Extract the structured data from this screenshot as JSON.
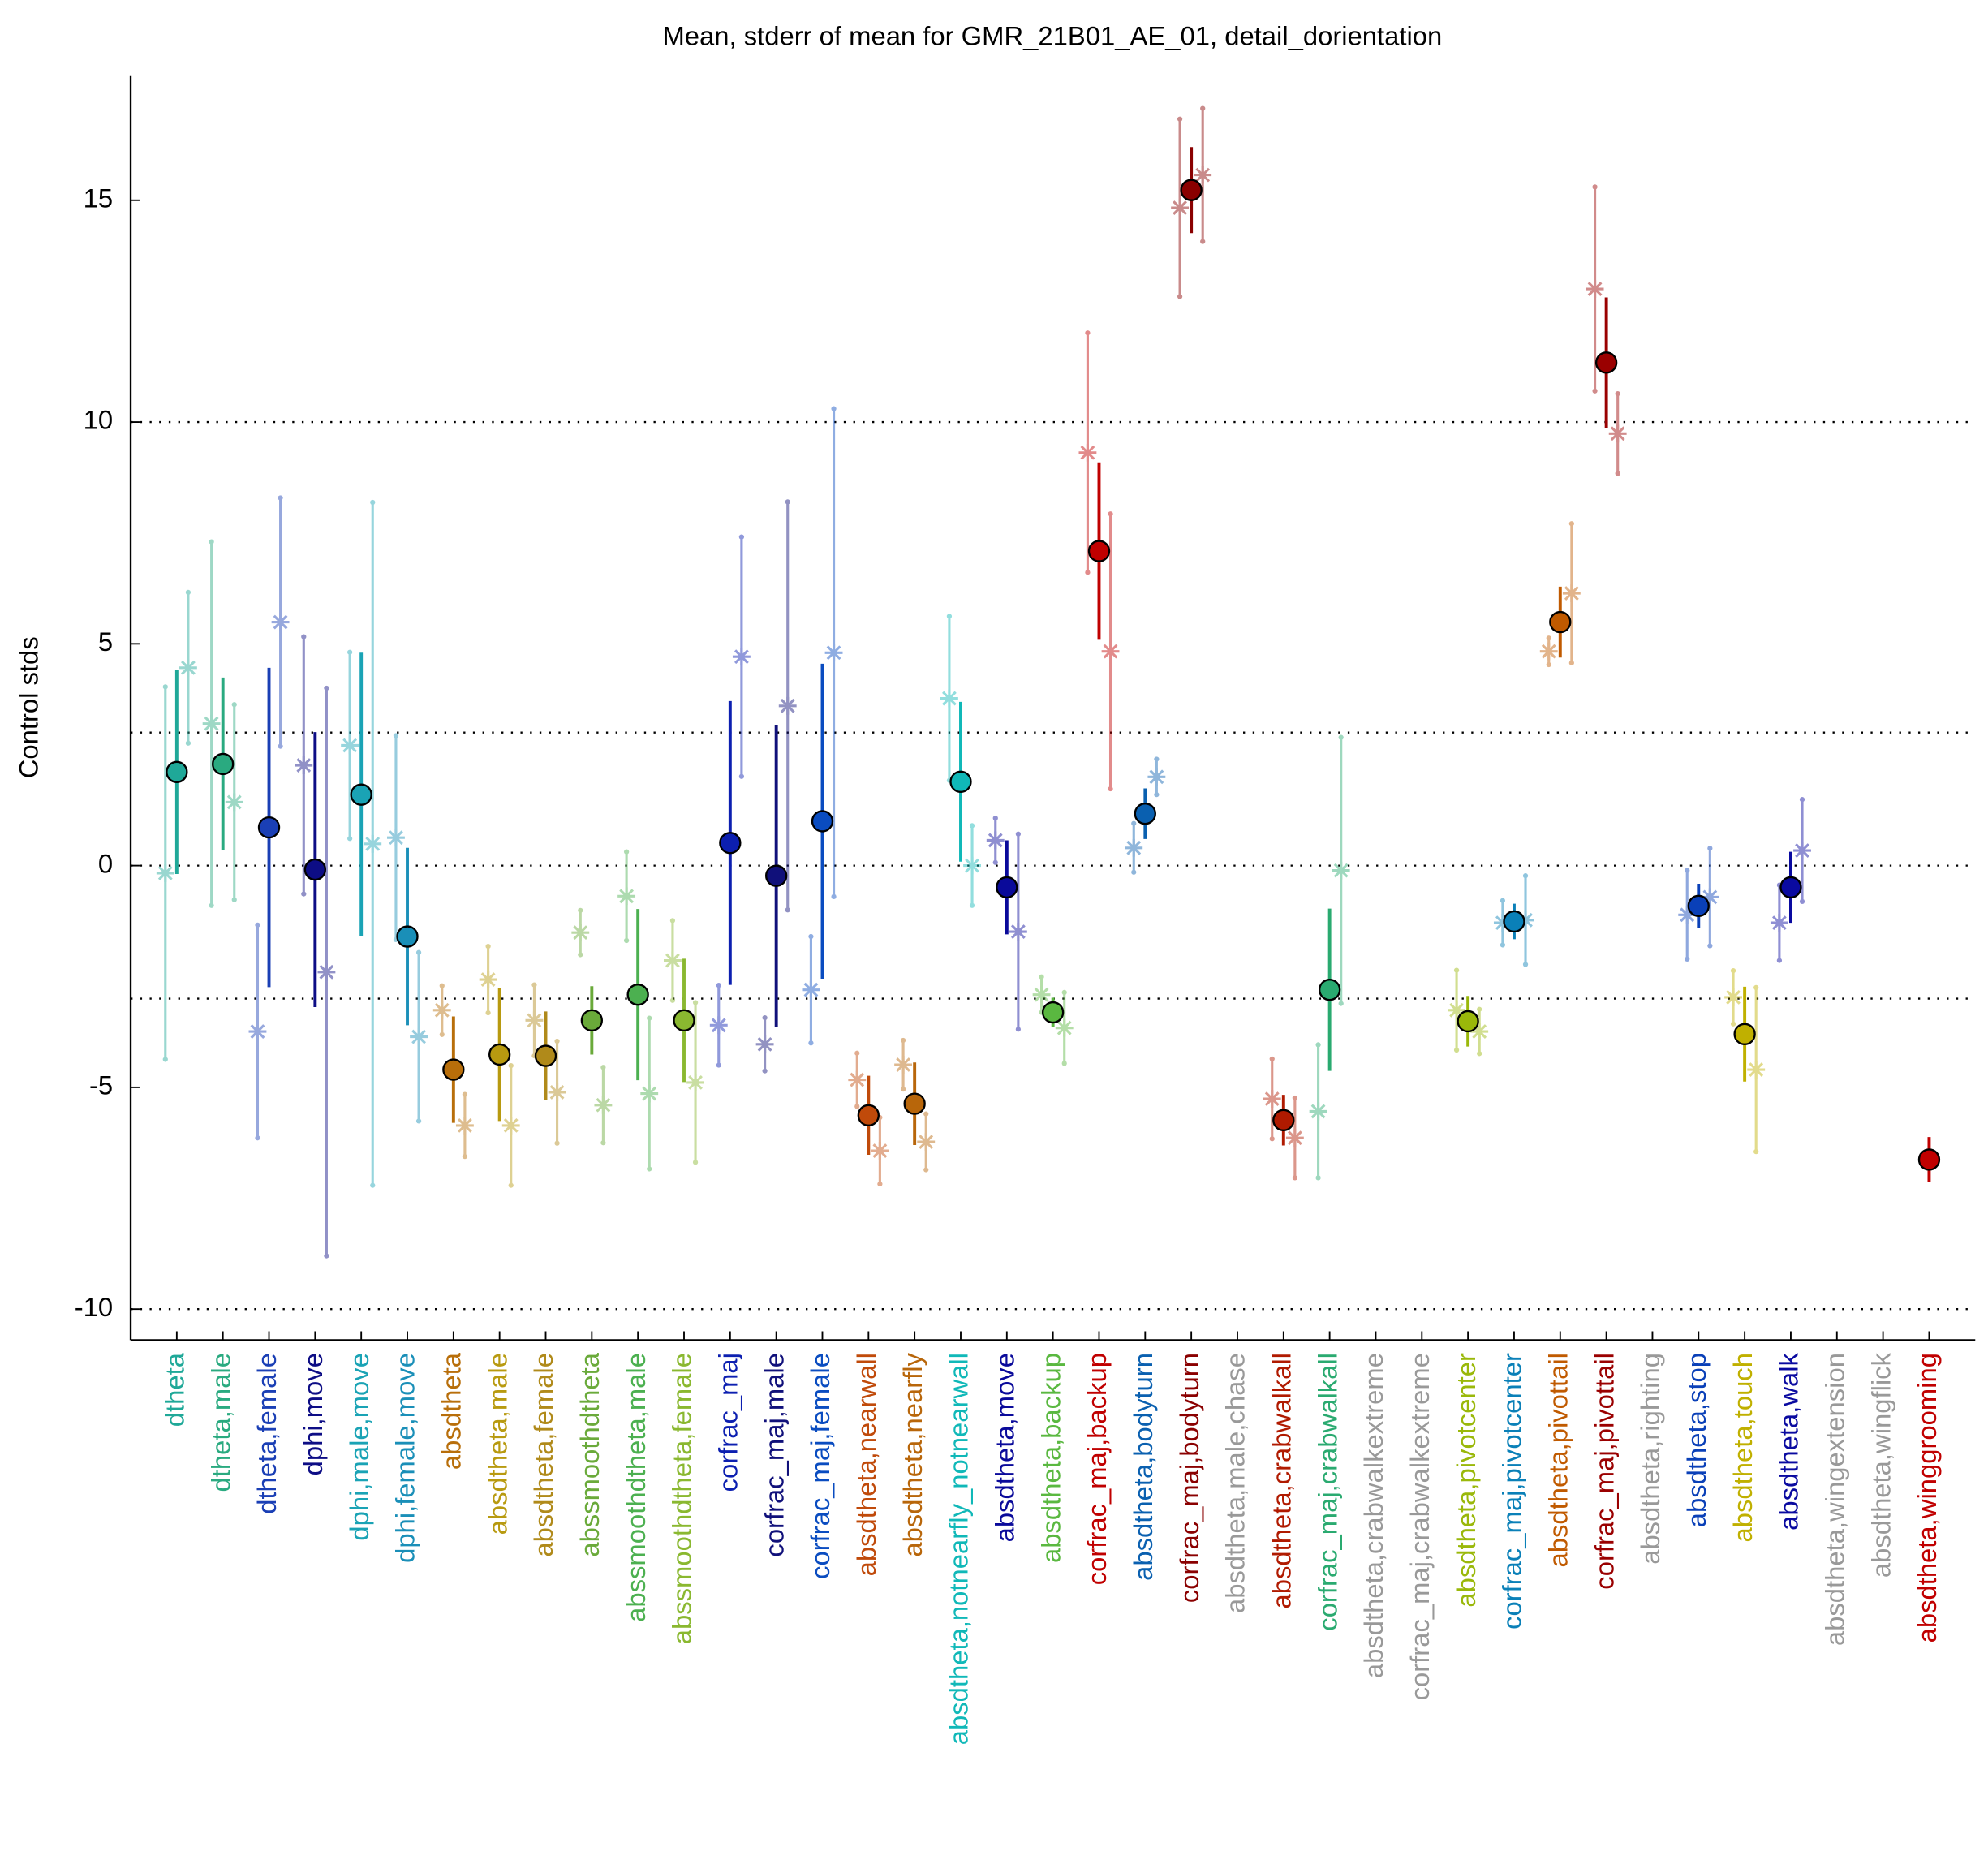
{
  "chart_data": {
    "type": "errorbar",
    "title": "Mean, stderr of mean for GMR_21B01_AE_01, detail_dorientation",
    "ylabel": "Control stds",
    "categories": [
      "dtheta",
      "dtheta,male",
      "dtheta,female",
      "dphi,move",
      "dphi,male,move",
      "dphi,female,move",
      "absdtheta",
      "absdtheta,male",
      "absdtheta,female",
      "abssmoothdtheta",
      "abssmoothdtheta,male",
      "abssmoothdtheta,female",
      "corfrac_maj",
      "corfrac_maj,male",
      "corfrac_maj,female",
      "absdtheta,nearwall",
      "absdtheta,nearfly",
      "absdtheta,notnearfly_notnearwall",
      "absdtheta,move",
      "absdtheta,backup",
      "corfrac_maj,backup",
      "absdtheta,bodyturn",
      "corfrac_maj,bodyturn",
      "absdtheta,male,chase",
      "absdtheta,crabwalkall",
      "corfrac_maj,crabwalkall",
      "absdtheta,crabwalkextreme",
      "corfrac_maj,crabwalkextreme",
      "absdtheta,pivotcenter",
      "corfrac_maj,pivotcenter",
      "absdtheta,pivottail",
      "corfrac_maj,pivottail",
      "absdtheta,righting",
      "absdtheta,stop",
      "absdtheta,touch",
      "absdtheta,walk",
      "absdtheta,wingextension",
      "absdtheta,wingflick",
      "absdtheta,winggrooming"
    ],
    "colors": [
      "#1fa898",
      "#2aaa80",
      "#1a3fb5",
      "#0d0d85",
      "#1aa3b5",
      "#1a8fb8",
      "#b86e0a",
      "#b89a10",
      "#b08a1a",
      "#6aaa3a",
      "#4cb050",
      "#8ab830",
      "#0c1fb0",
      "#10107a",
      "#0a4cc0",
      "#c04a0a",
      "#b8660a",
      "#10b8b8",
      "#0a0a9a",
      "#5ab840",
      "#c00000",
      "#0a60b0",
      "#8a0000",
      "#999999",
      "#b01a00",
      "#2aaa70",
      "#999999",
      "#999999",
      "#9ab80a",
      "#0a80b8",
      "#c05a00",
      "#9a0000",
      "#999999",
      "#0a40b8",
      "#c0b000",
      "#0a0aa0",
      "#999999",
      "#999999",
      "#c00000"
    ],
    "mean": {
      "values": [
        2.11,
        2.29,
        0.86,
        -0.09,
        1.6,
        -1.6,
        -4.6,
        -4.26,
        -4.29,
        -3.49,
        -2.91,
        -3.49,
        0.51,
        -0.23,
        1.0,
        -5.63,
        -5.37,
        1.89,
        -0.49,
        -3.31,
        7.09,
        1.17,
        15.23,
        null,
        -5.74,
        -2.8,
        null,
        null,
        -3.51,
        -1.26,
        5.49,
        11.34,
        null,
        -0.91,
        -3.8,
        -0.49,
        null,
        null,
        -6.63
      ],
      "errors": [
        2.3,
        1.95,
        3.6,
        3.1,
        3.2,
        2.0,
        1.2,
        1.5,
        1.0,
        0.77,
        1.93,
        1.39,
        3.2,
        3.4,
        3.55,
        0.89,
        0.93,
        1.8,
        1.06,
        0.33,
        2.0,
        0.57,
        0.97,
        null,
        0.57,
        1.83,
        null,
        null,
        0.57,
        0.4,
        0.8,
        1.47,
        null,
        0.5,
        1.07,
        0.8,
        null,
        null,
        0.51
      ]
    },
    "left": {
      "values": [
        -0.17,
        3.2,
        -3.74,
        2.26,
        2.71,
        0.63,
        -3.26,
        -2.57,
        -3.49,
        -1.51,
        -0.69,
        -2.14,
        -3.6,
        -4.03,
        -2.8,
        -4.83,
        -4.49,
        3.77,
        0.57,
        -2.91,
        9.31,
        0.4,
        14.83,
        null,
        -5.26,
        -5.54,
        null,
        null,
        -3.26,
        -1.29,
        4.83,
        13.0,
        null,
        -1.11,
        -2.97,
        -1.29,
        null,
        null,
        null
      ],
      "errors": [
        4.2,
        4.1,
        2.4,
        2.9,
        2.1,
        2.3,
        0.55,
        0.75,
        0.8,
        0.5,
        1.0,
        0.9,
        0.9,
        0.6,
        1.2,
        0.6,
        0.55,
        1.85,
        0.5,
        0.4,
        2.7,
        0.55,
        2.0,
        null,
        0.9,
        1.5,
        null,
        null,
        0.9,
        0.5,
        0.3,
        2.3,
        null,
        1.0,
        0.6,
        0.85,
        null,
        null,
        null
      ]
    },
    "right": {
      "values": [
        4.46,
        1.43,
        5.49,
        -2.4,
        0.49,
        -3.86,
        -5.86,
        -5.86,
        -5.11,
        -5.4,
        -5.14,
        -4.89,
        4.71,
        3.6,
        4.8,
        -6.43,
        -6.23,
        0.0,
        -1.49,
        -3.66,
        4.83,
        2.0,
        15.57,
        null,
        -6.14,
        -0.11,
        null,
        null,
        -3.74,
        -1.23,
        6.14,
        9.74,
        null,
        -0.71,
        -4.6,
        0.34,
        null,
        null,
        null
      ],
      "errors": [
        1.7,
        2.2,
        2.8,
        6.4,
        7.7,
        1.9,
        0.7,
        1.35,
        1.15,
        0.85,
        1.7,
        1.8,
        2.7,
        4.6,
        5.5,
        0.75,
        0.63,
        0.9,
        2.2,
        0.8,
        3.1,
        0.4,
        1.5,
        null,
        0.9,
        3.0,
        null,
        null,
        0.5,
        1.0,
        1.57,
        0.9,
        null,
        1.1,
        1.85,
        1.15,
        null,
        null,
        null
      ]
    },
    "ylim": [
      -10.7,
      17.8
    ],
    "yticks": [
      -10,
      -5,
      0,
      5,
      10,
      15
    ],
    "reference_lines": [
      -10,
      -3,
      0,
      3,
      10
    ]
  }
}
